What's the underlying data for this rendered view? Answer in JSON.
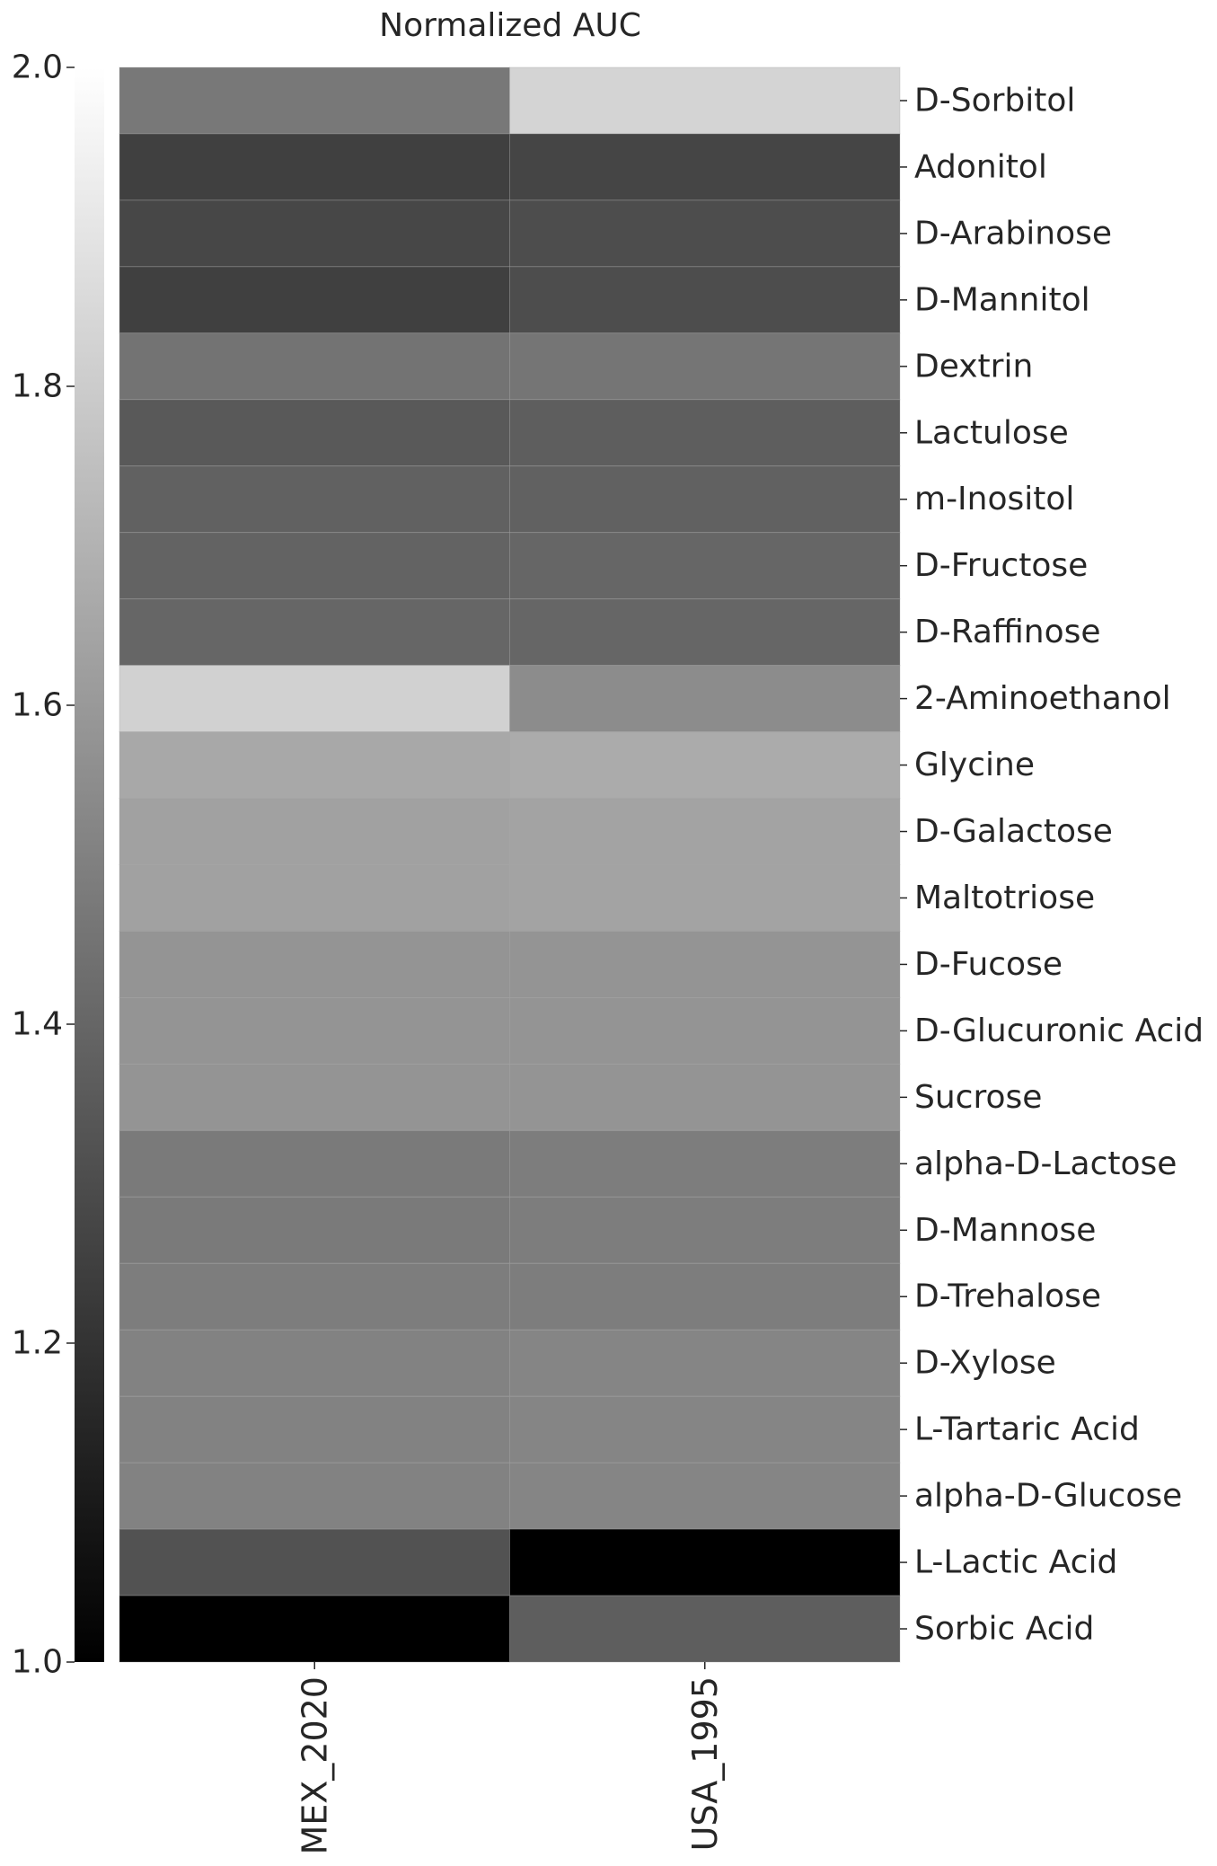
{
  "chart_data": {
    "type": "heatmap",
    "colorbar": {
      "title": "Normalized AUC",
      "range": [
        1.0,
        2.0
      ],
      "ticks": [
        "1.0",
        "1.2",
        "1.4",
        "1.6",
        "1.8",
        "2.0"
      ],
      "colormap": "grayscale",
      "color_low": "#000000",
      "color_high": "#ffffff"
    },
    "columns": [
      "MEX_2020",
      "USA_1995"
    ],
    "rows": [
      "D-Sorbitol",
      "Adonitol",
      "D-Arabinose",
      "D-Mannitol",
      "Dextrin",
      "Lactulose",
      "m-Inositol",
      "D-Fructose",
      "D-Raffinose",
      "2-Aminoethanol",
      "Glycine",
      "D-Galactose",
      "Maltotriose",
      "D-Fucose",
      "D-Glucuronic Acid",
      "Sucrose",
      "alpha-D-Lactose",
      "D-Mannose",
      "D-Trehalose",
      "D-Xylose",
      "L-Tartaric Acid",
      "alpha-D-Glucose",
      "L-Lactic Acid",
      "Sorbic Acid"
    ],
    "values": [
      [
        1.47,
        1.83
      ],
      [
        1.25,
        1.27
      ],
      [
        1.28,
        1.3
      ],
      [
        1.25,
        1.3
      ],
      [
        1.45,
        1.46
      ],
      [
        1.35,
        1.37
      ],
      [
        1.38,
        1.38
      ],
      [
        1.39,
        1.4
      ],
      [
        1.4,
        1.4
      ],
      [
        1.82,
        1.55
      ],
      [
        1.66,
        1.67
      ],
      [
        1.63,
        1.64
      ],
      [
        1.63,
        1.64
      ],
      [
        1.58,
        1.58
      ],
      [
        1.58,
        1.58
      ],
      [
        1.58,
        1.58
      ],
      [
        1.48,
        1.49
      ],
      [
        1.48,
        1.49
      ],
      [
        1.49,
        1.49
      ],
      [
        1.51,
        1.52
      ],
      [
        1.51,
        1.52
      ],
      [
        1.51,
        1.52
      ],
      [
        1.32,
        1.0
      ],
      [
        1.0,
        1.37
      ]
    ]
  }
}
